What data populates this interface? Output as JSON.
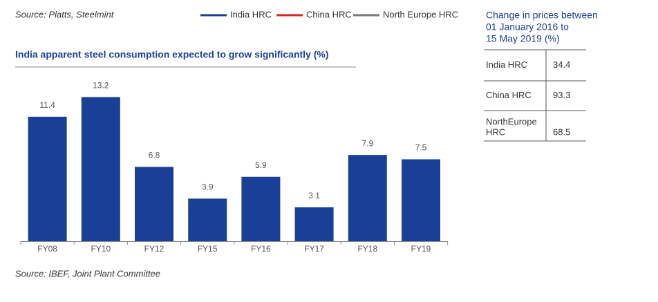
{
  "source_top": "Source: Platts, Steelmint",
  "legend": [
    {
      "name": "India HRC",
      "color": "#1a3f96"
    },
    {
      "name": "China HRC",
      "color": "#e02020"
    },
    {
      "name": "North Europe HRC",
      "color": "#777777"
    }
  ],
  "table": {
    "title": [
      "Change in prices between",
      "01 January 2016 to",
      "15 May 2019 (%)"
    ],
    "rows": [
      {
        "label": [
          "India HRC"
        ],
        "value": 34.4
      },
      {
        "label": [
          "China HRC"
        ],
        "value": 93.3
      },
      {
        "label": [
          "NorthEurope",
          "HRC"
        ],
        "value": 68.5
      }
    ]
  },
  "chart_data": {
    "type": "bar",
    "title": "India apparent steel consumption expected to grow significantly (%)",
    "categories": [
      "FY08",
      "FY10",
      "FY12",
      "FY15",
      "FY16",
      "FY17",
      "FY18",
      "FY19"
    ],
    "values": [
      11.4,
      13.2,
      6.8,
      3.9,
      5.9,
      3.1,
      7.9,
      7.5
    ],
    "color": "#1a3f96"
  },
  "source_bottom": "Source: IBEF, Joint Plant Committee"
}
